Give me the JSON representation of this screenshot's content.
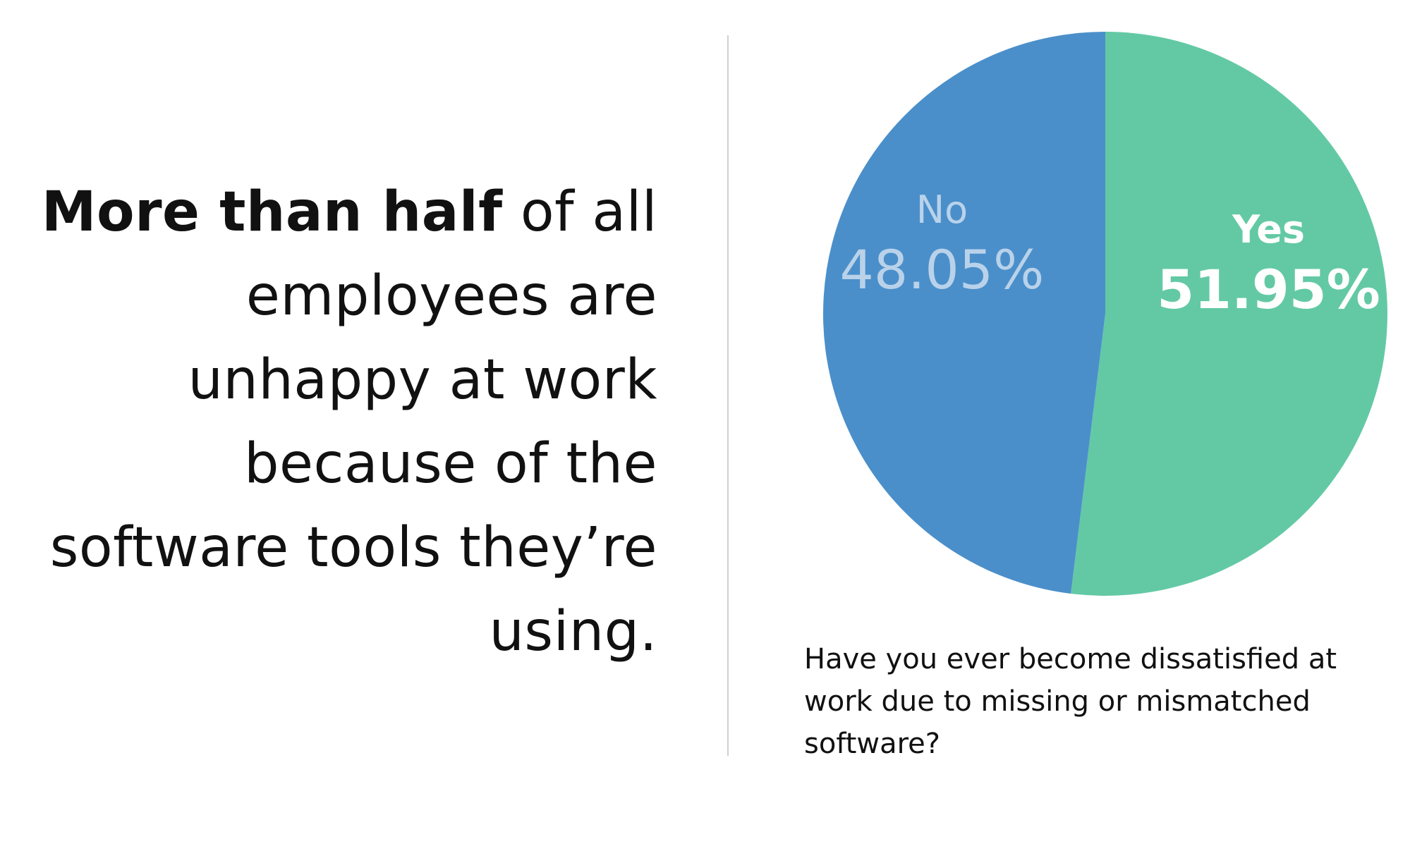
{
  "headline": {
    "bold": "More than half",
    "rest": " of all employees are unhappy at work because of the software tools they’re using."
  },
  "caption": "Have you ever become dissatisfied at work due to missing or mismatched software?",
  "chart_data": {
    "type": "pie",
    "title": "",
    "categories": [
      "Yes",
      "No"
    ],
    "values": [
      51.95,
      48.05
    ],
    "value_labels": [
      "51.95%",
      "48.05%"
    ],
    "colors": [
      "#63c9a5",
      "#4a8fca"
    ],
    "label_colors": [
      "#ffffff",
      "#b9d2ea"
    ],
    "start": "12 o'clock",
    "direction": "clockwise",
    "legend": "none"
  }
}
